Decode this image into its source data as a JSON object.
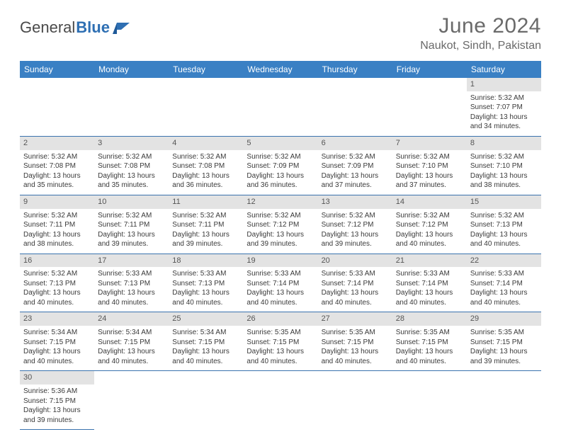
{
  "logo": {
    "text1": "General",
    "text2": "Blue"
  },
  "title": "June 2024",
  "location": "Naukot, Sindh, Pakistan",
  "colors": {
    "header_bg": "#3a80c4",
    "header_text": "#ffffff",
    "daynum_bg": "#e3e3e3",
    "border": "#3a73ae",
    "title_color": "#6a6a6a",
    "body_text": "#3a3a3a"
  },
  "weekdays": [
    "Sunday",
    "Monday",
    "Tuesday",
    "Wednesday",
    "Thursday",
    "Friday",
    "Saturday"
  ],
  "first_weekday_index": 6,
  "days": [
    {
      "n": 1,
      "sunrise": "5:32 AM",
      "sunset": "7:07 PM",
      "daylight": "13 hours and 34 minutes."
    },
    {
      "n": 2,
      "sunrise": "5:32 AM",
      "sunset": "7:08 PM",
      "daylight": "13 hours and 35 minutes."
    },
    {
      "n": 3,
      "sunrise": "5:32 AM",
      "sunset": "7:08 PM",
      "daylight": "13 hours and 35 minutes."
    },
    {
      "n": 4,
      "sunrise": "5:32 AM",
      "sunset": "7:08 PM",
      "daylight": "13 hours and 36 minutes."
    },
    {
      "n": 5,
      "sunrise": "5:32 AM",
      "sunset": "7:09 PM",
      "daylight": "13 hours and 36 minutes."
    },
    {
      "n": 6,
      "sunrise": "5:32 AM",
      "sunset": "7:09 PM",
      "daylight": "13 hours and 37 minutes."
    },
    {
      "n": 7,
      "sunrise": "5:32 AM",
      "sunset": "7:10 PM",
      "daylight": "13 hours and 37 minutes."
    },
    {
      "n": 8,
      "sunrise": "5:32 AM",
      "sunset": "7:10 PM",
      "daylight": "13 hours and 38 minutes."
    },
    {
      "n": 9,
      "sunrise": "5:32 AM",
      "sunset": "7:11 PM",
      "daylight": "13 hours and 38 minutes."
    },
    {
      "n": 10,
      "sunrise": "5:32 AM",
      "sunset": "7:11 PM",
      "daylight": "13 hours and 39 minutes."
    },
    {
      "n": 11,
      "sunrise": "5:32 AM",
      "sunset": "7:11 PM",
      "daylight": "13 hours and 39 minutes."
    },
    {
      "n": 12,
      "sunrise": "5:32 AM",
      "sunset": "7:12 PM",
      "daylight": "13 hours and 39 minutes."
    },
    {
      "n": 13,
      "sunrise": "5:32 AM",
      "sunset": "7:12 PM",
      "daylight": "13 hours and 39 minutes."
    },
    {
      "n": 14,
      "sunrise": "5:32 AM",
      "sunset": "7:12 PM",
      "daylight": "13 hours and 40 minutes."
    },
    {
      "n": 15,
      "sunrise": "5:32 AM",
      "sunset": "7:13 PM",
      "daylight": "13 hours and 40 minutes."
    },
    {
      "n": 16,
      "sunrise": "5:32 AM",
      "sunset": "7:13 PM",
      "daylight": "13 hours and 40 minutes."
    },
    {
      "n": 17,
      "sunrise": "5:33 AM",
      "sunset": "7:13 PM",
      "daylight": "13 hours and 40 minutes."
    },
    {
      "n": 18,
      "sunrise": "5:33 AM",
      "sunset": "7:13 PM",
      "daylight": "13 hours and 40 minutes."
    },
    {
      "n": 19,
      "sunrise": "5:33 AM",
      "sunset": "7:14 PM",
      "daylight": "13 hours and 40 minutes."
    },
    {
      "n": 20,
      "sunrise": "5:33 AM",
      "sunset": "7:14 PM",
      "daylight": "13 hours and 40 minutes."
    },
    {
      "n": 21,
      "sunrise": "5:33 AM",
      "sunset": "7:14 PM",
      "daylight": "13 hours and 40 minutes."
    },
    {
      "n": 22,
      "sunrise": "5:33 AM",
      "sunset": "7:14 PM",
      "daylight": "13 hours and 40 minutes."
    },
    {
      "n": 23,
      "sunrise": "5:34 AM",
      "sunset": "7:15 PM",
      "daylight": "13 hours and 40 minutes."
    },
    {
      "n": 24,
      "sunrise": "5:34 AM",
      "sunset": "7:15 PM",
      "daylight": "13 hours and 40 minutes."
    },
    {
      "n": 25,
      "sunrise": "5:34 AM",
      "sunset": "7:15 PM",
      "daylight": "13 hours and 40 minutes."
    },
    {
      "n": 26,
      "sunrise": "5:35 AM",
      "sunset": "7:15 PM",
      "daylight": "13 hours and 40 minutes."
    },
    {
      "n": 27,
      "sunrise": "5:35 AM",
      "sunset": "7:15 PM",
      "daylight": "13 hours and 40 minutes."
    },
    {
      "n": 28,
      "sunrise": "5:35 AM",
      "sunset": "7:15 PM",
      "daylight": "13 hours and 40 minutes."
    },
    {
      "n": 29,
      "sunrise": "5:35 AM",
      "sunset": "7:15 PM",
      "daylight": "13 hours and 39 minutes."
    },
    {
      "n": 30,
      "sunrise": "5:36 AM",
      "sunset": "7:15 PM",
      "daylight": "13 hours and 39 minutes."
    }
  ],
  "labels": {
    "sunrise": "Sunrise:",
    "sunset": "Sunset:",
    "daylight": "Daylight:"
  }
}
